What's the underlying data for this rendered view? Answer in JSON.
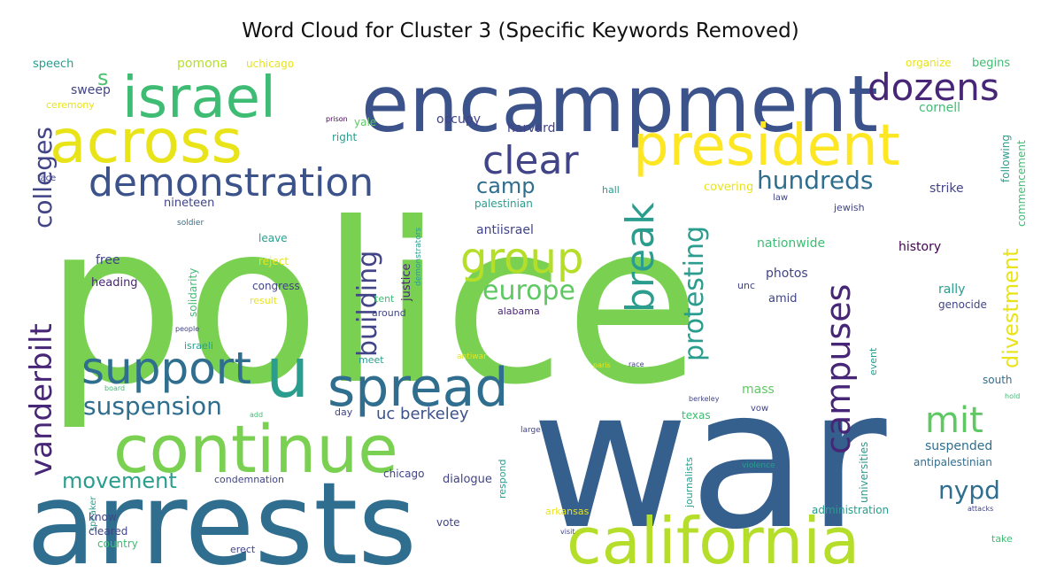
{
  "title": "Word Cloud for Cluster 3 (Specific Keywords Removed)",
  "palette": {
    "light-yellow": "#fde725",
    "pale-yellow": "#e8e419",
    "yellow-green": "#b5de2b",
    "light-green": "#7ad151",
    "green": "#5ec962",
    "teal-green": "#3fbc73",
    "teal": "#2a9d8e",
    "teal-blue": "#2f6e8e",
    "steel-blue": "#3b528b",
    "indigo": "#414487",
    "deep-purple": "#482677",
    "dark-purple": "#440154",
    "slate": "#355f8d",
    "olive": "#a0da39",
    "mint": "#4ac16d"
  },
  "words": [
    {
      "text": "police",
      "color": "light-green"
    },
    {
      "text": "war",
      "color": "slate"
    },
    {
      "text": "arrests",
      "color": "teal-blue"
    },
    {
      "text": "encampment",
      "color": "steel-blue"
    },
    {
      "text": "continue",
      "color": "light-green"
    },
    {
      "text": "california",
      "color": "yellow-green"
    },
    {
      "text": "president",
      "color": "light-yellow"
    },
    {
      "text": "across",
      "color": "pale-yellow"
    },
    {
      "text": "israel",
      "color": "teal-green"
    },
    {
      "text": "spread",
      "color": "teal-blue"
    },
    {
      "text": "demonstration",
      "color": "steel-blue"
    },
    {
      "text": "dozens",
      "color": "deep-purple"
    },
    {
      "text": "clear",
      "color": "indigo"
    },
    {
      "text": "group",
      "color": "yellow-green"
    },
    {
      "text": "support",
      "color": "teal-blue"
    },
    {
      "text": "u",
      "color": "teal"
    },
    {
      "text": "vanderbilt",
      "color": "deep-purple"
    },
    {
      "text": "colleges",
      "color": "indigo"
    },
    {
      "text": "campuses",
      "color": "deep-purple"
    },
    {
      "text": "break",
      "color": "teal"
    },
    {
      "text": "mit",
      "color": "green"
    },
    {
      "text": "europe",
      "color": "green"
    },
    {
      "text": "suspension",
      "color": "teal-blue"
    },
    {
      "text": "hundreds",
      "color": "teal-blue"
    },
    {
      "text": "building",
      "color": "indigo"
    },
    {
      "text": "protesting",
      "color": "teal"
    },
    {
      "text": "divestment",
      "color": "pale-yellow"
    },
    {
      "text": "movement",
      "color": "teal"
    },
    {
      "text": "nypd",
      "color": "teal-blue"
    },
    {
      "text": "camp",
      "color": "teal-blue"
    },
    {
      "text": "uc berkeley",
      "color": "steel-blue"
    },
    {
      "text": "s",
      "color": "mint"
    },
    {
      "text": "speech",
      "color": "teal"
    },
    {
      "text": "pomona",
      "color": "yellow-green"
    },
    {
      "text": "uchicago",
      "color": "pale-yellow"
    },
    {
      "text": "sweep",
      "color": "indigo"
    },
    {
      "text": "ceremony",
      "color": "pale-yellow"
    },
    {
      "text": "occupy",
      "color": "indigo"
    },
    {
      "text": "harvard",
      "color": "indigo"
    },
    {
      "text": "yale",
      "color": "green"
    },
    {
      "text": "right",
      "color": "teal"
    },
    {
      "text": "prison",
      "color": "dark-purple"
    },
    {
      "text": "organize",
      "color": "pale-yellow"
    },
    {
      "text": "begins",
      "color": "teal-green"
    },
    {
      "text": "cornell",
      "color": "teal-green"
    },
    {
      "text": "commencement",
      "color": "teal-green"
    },
    {
      "text": "following",
      "color": "teal"
    },
    {
      "text": "face",
      "color": "indigo"
    },
    {
      "text": "nineteen",
      "color": "indigo"
    },
    {
      "text": "soldier",
      "color": "teal-blue"
    },
    {
      "text": "palestinian",
      "color": "teal"
    },
    {
      "text": "antiisrael",
      "color": "indigo"
    },
    {
      "text": "covering",
      "color": "pale-yellow"
    },
    {
      "text": "law",
      "color": "indigo"
    },
    {
      "text": "hall",
      "color": "teal"
    },
    {
      "text": "strike",
      "color": "indigo"
    },
    {
      "text": "jewish",
      "color": "indigo"
    },
    {
      "text": "leave",
      "color": "teal"
    },
    {
      "text": "reject",
      "color": "pale-yellow"
    },
    {
      "text": "free",
      "color": "indigo"
    },
    {
      "text": "heading",
      "color": "deep-purple"
    },
    {
      "text": "solidarity",
      "color": "teal-green"
    },
    {
      "text": "justice",
      "color": "deep-purple"
    },
    {
      "text": "congress",
      "color": "indigo"
    },
    {
      "text": "result",
      "color": "pale-yellow"
    },
    {
      "text": "tent",
      "color": "teal-green"
    },
    {
      "text": "around",
      "color": "indigo"
    },
    {
      "text": "alabama",
      "color": "deep-purple"
    },
    {
      "text": "nationwide",
      "color": "teal-green"
    },
    {
      "text": "photos",
      "color": "indigo"
    },
    {
      "text": "unc",
      "color": "indigo"
    },
    {
      "text": "amid",
      "color": "indigo"
    },
    {
      "text": "history",
      "color": "dark-purple"
    },
    {
      "text": "rally",
      "color": "teal"
    },
    {
      "text": "genocide",
      "color": "indigo"
    },
    {
      "text": "israeli",
      "color": "teal"
    },
    {
      "text": "people",
      "color": "indigo"
    },
    {
      "text": "meet",
      "color": "teal"
    },
    {
      "text": "mass",
      "color": "green"
    },
    {
      "text": "race",
      "color": "indigo"
    },
    {
      "text": "event",
      "color": "teal"
    },
    {
      "text": "universities",
      "color": "teal"
    },
    {
      "text": "south",
      "color": "teal-blue"
    },
    {
      "text": "day",
      "color": "indigo"
    },
    {
      "text": "vow",
      "color": "indigo"
    },
    {
      "text": "texas",
      "color": "teal-green"
    },
    {
      "text": "berkeley",
      "color": "indigo"
    },
    {
      "text": "suspended",
      "color": "teal-blue"
    },
    {
      "text": "antipalestinian",
      "color": "teal-blue"
    },
    {
      "text": "condemnation",
      "color": "indigo"
    },
    {
      "text": "chicago",
      "color": "indigo"
    },
    {
      "text": "dialogue",
      "color": "indigo"
    },
    {
      "text": "respond",
      "color": "teal"
    },
    {
      "text": "journalists",
      "color": "teal"
    },
    {
      "text": "violence",
      "color": "teal"
    },
    {
      "text": "speaker",
      "color": "teal"
    },
    {
      "text": "know",
      "color": "indigo"
    },
    {
      "text": "cleared",
      "color": "indigo"
    },
    {
      "text": "country",
      "color": "teal-green"
    },
    {
      "text": "erect",
      "color": "indigo"
    },
    {
      "text": "vote",
      "color": "indigo"
    },
    {
      "text": "arkansas",
      "color": "pale-yellow"
    },
    {
      "text": "administration",
      "color": "teal"
    },
    {
      "text": "take",
      "color": "teal-green"
    },
    {
      "text": "demonstrators",
      "color": "teal"
    },
    {
      "text": "antiwar",
      "color": "pale-yellow"
    },
    {
      "text": "paris",
      "color": "pale-yellow"
    },
    {
      "text": "large",
      "color": "indigo"
    },
    {
      "text": "visit",
      "color": "indigo"
    },
    {
      "text": "attacks",
      "color": "indigo"
    },
    {
      "text": "hold",
      "color": "teal-green"
    },
    {
      "text": "board",
      "color": "teal-green"
    },
    {
      "text": "add",
      "color": "teal-green"
    }
  ]
}
